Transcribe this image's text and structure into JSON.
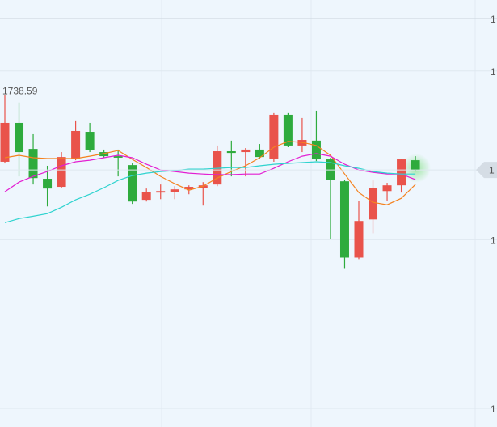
{
  "chart_data": {
    "type": "candlestick",
    "categories": [
      null,
      null,
      null,
      null,
      null,
      null,
      null,
      null,
      null,
      null,
      null,
      null,
      null,
      null,
      null,
      null,
      null,
      null,
      null,
      null,
      null,
      null,
      null,
      null,
      null,
      null,
      null,
      null,
      null,
      null
    ],
    "open": [
      1734.62,
      1736.92,
      1735.38,
      1733.61,
      1733.13,
      1734.81,
      1736.39,
      1735.19,
      1734.95,
      1734.42,
      1732.36,
      1732.79,
      1732.84,
      1732.98,
      1733.08,
      1733.27,
      1735.24,
      1735.19,
      1735.34,
      1734.81,
      1737.4,
      1735.58,
      1735.87,
      1734.76,
      1733.46,
      1728.94,
      1731.2,
      1732.88,
      1733.22,
      1734.71
    ],
    "high": [
      1738.59,
      1738.13,
      1736.25,
      1734.38,
      1735.19,
      1737.02,
      1736.92,
      1735.34,
      1735.34,
      1734.52,
      1733.03,
      1733.27,
      1733.17,
      1733.22,
      1733.41,
      1735.58,
      1735.87,
      1735.43,
      1735.67,
      1737.5,
      1737.5,
      1737.21,
      1737.64,
      1734.86,
      1733.56,
      1732.31,
      1733.51,
      1733.37,
      1734.76,
      1734.95
    ],
    "low": [
      1734.52,
      1733.75,
      1733.27,
      1731.97,
      1733.08,
      1734.71,
      1735.19,
      1734.86,
      1733.75,
      1732.12,
      1732.26,
      1732.4,
      1732.4,
      1732.69,
      1732.02,
      1733.17,
      1733.75,
      1733.75,
      1734.81,
      1734.62,
      1735.48,
      1735.19,
      1734.66,
      1730.05,
      1728.27,
      1728.85,
      1730.38,
      1732.31,
      1732.79,
      1734.04
    ],
    "close": [
      1736.92,
      1735.19,
      1733.65,
      1733.03,
      1734.9,
      1736.44,
      1735.29,
      1734.95,
      1734.86,
      1732.26,
      1732.84,
      1732.88,
      1732.98,
      1733.13,
      1733.22,
      1735.24,
      1735.14,
      1735.34,
      1734.9,
      1737.4,
      1735.58,
      1735.91,
      1734.76,
      1733.56,
      1728.94,
      1731.11,
      1733.08,
      1733.22,
      1734.76,
      1734.13
    ],
    "up_color": "#e9534b",
    "down_color": "#2eab3d",
    "series": [
      {
        "color": "#f5821f",
        "values": [
          1734.86,
          1735.0,
          1734.86,
          1734.81,
          1734.81,
          1734.81,
          1734.95,
          1735.1,
          1735.29,
          1734.76,
          1734.28,
          1733.75,
          1733.32,
          1732.93,
          1733.17,
          1733.65,
          1734.04,
          1734.38,
          1734.86,
          1735.48,
          1735.82,
          1735.77,
          1735.58,
          1735.0,
          1733.89,
          1732.79,
          1732.21,
          1732.07,
          1732.45,
          1733.27
        ]
      },
      {
        "color": "#e31ed2",
        "values": [
          1732.84,
          1733.41,
          1733.75,
          1734.04,
          1734.38,
          1734.62,
          1734.71,
          1734.86,
          1735.0,
          1734.86,
          1734.47,
          1734.13,
          1734.04,
          1733.94,
          1733.89,
          1733.85,
          1733.85,
          1733.89,
          1733.89,
          1734.23,
          1734.62,
          1734.95,
          1735.1,
          1734.95,
          1734.47,
          1734.13,
          1733.99,
          1733.89,
          1733.89,
          1733.56
        ]
      },
      {
        "color": "#2fd3cf",
        "values": [
          1731.01,
          1731.25,
          1731.39,
          1731.54,
          1731.92,
          1732.36,
          1732.69,
          1733.08,
          1733.51,
          1733.8,
          1733.94,
          1734.04,
          1734.09,
          1734.18,
          1734.18,
          1734.23,
          1734.28,
          1734.28,
          1734.38,
          1734.47,
          1734.52,
          1734.57,
          1734.62,
          1734.57,
          1734.38,
          1734.23,
          1734.04,
          1733.94,
          1733.89,
          1733.89
        ]
      }
    ],
    "ylim": [
      1718.9,
      1743.1
    ],
    "yticks": [
      {
        "value": 1743.1,
        "label": "1"
      },
      {
        "value": 1740,
        "label": "1"
      },
      {
        "value": 1730,
        "label": "1"
      },
      {
        "value": 1720,
        "label": "1"
      }
    ],
    "price_tag": {
      "value": 1734.13,
      "label": "1"
    },
    "grid": true
  }
}
